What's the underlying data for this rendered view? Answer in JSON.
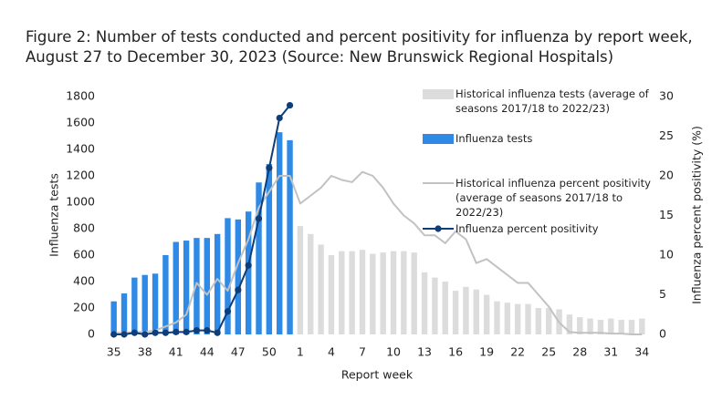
{
  "chart_data": {
    "type": "combo",
    "title": [
      "Figure 2: Number of tests conducted and percent positivity for influenza by report week,",
      "August 27 to December 30, 2023 (Source: New Brunswick Regional Hospitals)"
    ],
    "x_label": "Report week",
    "y_label": "Influenza tests",
    "y2_label": "Influenza percent positivity (%)",
    "categories": [
      "35",
      null,
      null,
      "38",
      null,
      null,
      "41",
      null,
      null,
      "44",
      null,
      null,
      "47",
      null,
      null,
      "50",
      null,
      null,
      "1",
      null,
      null,
      "4",
      null,
      null,
      "7",
      null,
      null,
      "10",
      null,
      null,
      "13",
      null,
      null,
      "16",
      null,
      null,
      "19",
      null,
      null,
      "22",
      null,
      null,
      "25",
      null,
      null,
      "28",
      null,
      null,
      "31",
      null,
      null,
      "34"
    ],
    "ylim": [
      0,
      1800
    ],
    "yticks": [
      0,
      200,
      400,
      600,
      800,
      1000,
      1200,
      1400,
      1600,
      1800
    ],
    "y2lim": [
      0,
      30
    ],
    "y2ticks": [
      0,
      5,
      10,
      15,
      20,
      25,
      30
    ],
    "series": [
      {
        "name": "Historical influenza tests (average of seasons 2017/18 to 2022/23)",
        "type": "bar",
        "color": "#dcdcdc",
        "values": [
          80,
          80,
          90,
          100,
          110,
          130,
          170,
          200,
          250,
          300,
          350,
          450,
          530,
          600,
          660,
          710,
          760,
          740,
          820,
          760,
          680,
          600,
          630,
          630,
          640,
          610,
          620,
          630,
          630,
          620,
          470,
          430,
          400,
          330,
          360,
          340,
          300,
          250,
          240,
          230,
          230,
          200,
          200,
          190,
          150,
          130,
          120,
          110,
          120,
          110,
          110,
          120
        ]
      },
      {
        "name": "Influenza tests",
        "type": "bar",
        "color": "#2f8ae5",
        "values": [
          250,
          310,
          430,
          450,
          460,
          600,
          700,
          710,
          730,
          730,
          760,
          880,
          870,
          930,
          1150,
          1290,
          1530,
          1470,
          null,
          null,
          null,
          null,
          null,
          null,
          null,
          null,
          null,
          null,
          null,
          null,
          null,
          null,
          null,
          null,
          null,
          null,
          null,
          null,
          null,
          null,
          null,
          null,
          null,
          null,
          null,
          null,
          null,
          null,
          null,
          null,
          null,
          null
        ]
      },
      {
        "name": "Historical influenza percent positivity (average of seasons 2017/18 to 2022/23)",
        "type": "line",
        "axis": "y2",
        "color": "#c2c2c2",
        "values": [
          0.2,
          0.2,
          0.3,
          0.3,
          0.5,
          1,
          1.5,
          2.5,
          6.5,
          5,
          7,
          5.5,
          9,
          12,
          16,
          18,
          20,
          20,
          16.5,
          17.5,
          18.5,
          20,
          19.5,
          19.2,
          20.5,
          20,
          18.5,
          16.5,
          15,
          14,
          12.5,
          12.5,
          11.5,
          13,
          12,
          9,
          9.5,
          8.5,
          7.5,
          6.5,
          6.5,
          5,
          3.5,
          1.5,
          0.3,
          0.2,
          0.2,
          0.2,
          0.1,
          0.1,
          0,
          0
        ]
      },
      {
        "name": "Influenza percent positivity",
        "type": "line",
        "axis": "y2",
        "color": "#0f3d7a",
        "markers": true,
        "values": [
          0,
          0,
          0.2,
          0,
          0.2,
          0.2,
          0.3,
          0.3,
          0.5,
          0.5,
          0.2,
          2.9,
          5.6,
          8.7,
          14.6,
          21,
          27.3,
          28.9,
          null,
          null,
          null,
          null,
          null,
          null,
          null,
          null,
          null,
          null,
          null,
          null,
          null,
          null,
          null,
          null,
          null,
          null,
          null,
          null,
          null,
          null,
          null,
          null,
          null,
          null,
          null,
          null,
          null,
          null,
          null,
          null,
          null,
          null
        ]
      }
    ]
  }
}
